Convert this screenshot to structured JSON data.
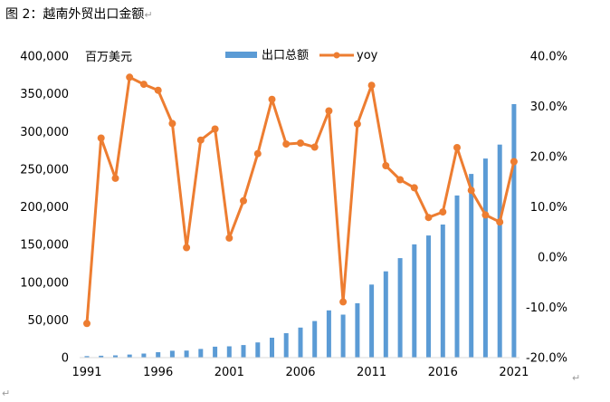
{
  "title": "图 2：越南外贸出口金额",
  "return_mark": "↵",
  "chart_data": {
    "type": "bar+line",
    "title": "图 2：越南外贸出口金额",
    "unit_label": "百万美元",
    "x": [
      1991,
      1992,
      1993,
      1994,
      1995,
      1996,
      1997,
      1998,
      1999,
      2000,
      2001,
      2002,
      2003,
      2004,
      2005,
      2006,
      2007,
      2008,
      2009,
      2010,
      2011,
      2012,
      2013,
      2014,
      2015,
      2016,
      2017,
      2018,
      2019,
      2020,
      2021
    ],
    "x_tick_labels": [
      "1991",
      "1996",
      "2001",
      "2006",
      "2011",
      "2016",
      "2021"
    ],
    "series": [
      {
        "name": "出口总额",
        "type": "bar",
        "axis": "left",
        "color": "#5b9bd5",
        "values": [
          2087,
          2581,
          2985,
          4054,
          5449,
          7256,
          9185,
          9360,
          11541,
          14483,
          15029,
          16706,
          20149,
          26485,
          32447,
          39826,
          48561,
          62685,
          57096,
          72237,
          96906,
          114529,
          132033,
          150217,
          162017,
          176581,
          215119,
          243697,
          264189,
          282629,
          336310
        ]
      },
      {
        "name": "yoy",
        "type": "line",
        "axis": "right",
        "color": "#ed7d31",
        "values": [
          -13.2,
          23.7,
          15.7,
          35.8,
          34.4,
          33.2,
          26.6,
          1.9,
          23.3,
          25.5,
          3.8,
          11.2,
          20.6,
          31.4,
          22.5,
          22.7,
          21.9,
          29.1,
          -8.9,
          26.5,
          34.2,
          18.2,
          15.4,
          13.8,
          7.9,
          9.0,
          21.8,
          13.3,
          8.4,
          7.0,
          19.0
        ]
      }
    ],
    "y_left": {
      "min": 0,
      "max": 400000,
      "step": 50000,
      "tick_labels": [
        "0",
        "50,000",
        "100,000",
        "150,000",
        "200,000",
        "250,000",
        "300,000",
        "350,000",
        "400,000"
      ]
    },
    "y_right": {
      "min": -20,
      "max": 40,
      "step": 10,
      "tick_labels": [
        "-20.0%",
        "-10.0%",
        "0.0%",
        "10.0%",
        "20.0%",
        "30.0%",
        "40.0%"
      ]
    },
    "legend": {
      "position": "top-center",
      "entries": [
        "出口总额",
        "yoy"
      ]
    },
    "grid": false
  }
}
